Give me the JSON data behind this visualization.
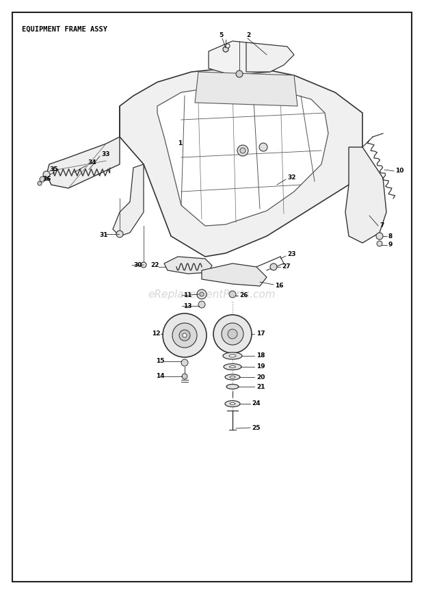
{
  "title": "EQUIPMENT FRAME ASSY",
  "bg_color": "#ffffff",
  "border_color": "#222222",
  "watermark": "eReplacementParts.com",
  "watermark_color": "#bbbbbb",
  "frame_color": "#333333",
  "label_fontsize": 6.5,
  "title_fontsize": 7.5
}
